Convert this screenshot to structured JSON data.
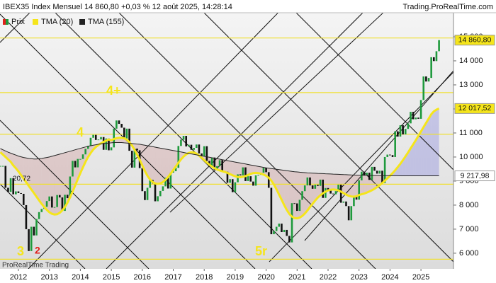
{
  "chart_data": {
    "type": "candlestick",
    "title": "IBEX35 Index Mensuel 14 860,80 +0,03 % 12 août 2025, 14:28:14",
    "source": "Trading.ProRealTime.com",
    "watermark": "ProRealTime Trading",
    "categories": [
      null,
      null,
      null,
      null,
      null,
      null,
      null,
      "2012",
      null,
      null,
      null,
      null,
      null,
      null,
      null,
      null,
      null,
      null,
      null,
      "2013",
      null,
      null,
      null,
      null,
      null,
      null,
      null,
      null,
      null,
      null,
      null,
      "2014",
      null,
      null,
      null,
      null,
      null,
      null,
      null,
      null,
      null,
      null,
      null,
      "2015",
      null,
      null,
      null,
      null,
      null,
      null,
      null,
      null,
      null,
      null,
      null,
      "2016",
      null,
      null,
      null,
      null,
      null,
      null,
      null,
      null,
      null,
      null,
      null,
      "2017",
      null,
      null,
      null,
      null,
      null,
      null,
      null,
      null,
      null,
      null,
      null,
      "2018",
      null,
      null,
      null,
      null,
      null,
      null,
      null,
      null,
      null,
      null,
      null,
      "2019",
      null,
      null,
      null,
      null,
      null,
      null,
      null,
      null,
      null,
      null,
      null,
      "2020",
      null,
      null,
      null,
      null,
      null,
      null,
      null,
      null,
      null,
      null,
      null,
      "2021",
      null,
      null,
      null,
      null,
      null,
      null,
      null,
      null,
      null,
      null,
      null,
      "2022",
      null,
      null,
      null,
      null,
      null,
      null,
      null,
      null,
      null,
      null,
      null,
      "2023",
      null,
      null,
      null,
      null,
      null,
      null,
      null,
      null,
      null,
      null,
      null,
      "2024",
      null,
      null,
      null,
      null,
      null,
      null,
      null,
      null,
      null,
      null,
      null,
      "2025",
      null,
      null,
      null,
      null,
      null,
      null,
      null
    ],
    "series": [
      {
        "name": "Prix",
        "up_color": "#1e9a3c",
        "down_color": "#111111",
        "last_label": "14 860,80",
        "label_color": "#f5e51b",
        "values": [
          9630,
          9630,
          8720,
          8550,
          9120,
          8450,
          8570,
          8500,
          8470,
          8000,
          7000,
          6090,
          7100,
          6740,
          7420,
          7710,
          7840,
          7930,
          8170,
          8360,
          7900,
          7920,
          8420,
          8320,
          7760,
          8430,
          8290,
          9190,
          9840,
          9570,
          9920,
          9920,
          10110,
          10340,
          10460,
          10800,
          10920,
          10710,
          10730,
          10830,
          10300,
          10770,
          10280,
          10400,
          11180,
          11520,
          11380,
          11220,
          10770,
          11180,
          10260,
          9560,
          10350,
          10280,
          9540,
          8580,
          8210,
          8720,
          9050,
          8900,
          8160,
          8370,
          8590,
          8780,
          9140,
          8690,
          9350,
          9410,
          9550,
          10460,
          10720,
          10880,
          10440,
          10510,
          10300,
          10380,
          10520,
          10150,
          10040,
          10450,
          9840,
          9600,
          9980,
          9470,
          9620,
          9870,
          9400,
          9390,
          8930,
          9080,
          8540,
          8950,
          9280,
          9240,
          9570,
          9000,
          9200,
          8980,
          8810,
          9240,
          9260,
          9350,
          9550,
          9370,
          8720,
          6790,
          6920,
          7100,
          7230,
          6880,
          6970,
          6720,
          6450,
          8080,
          8070,
          7760,
          8220,
          8580,
          8820,
          9150,
          8820,
          8680,
          8850,
          8800,
          9060,
          8300,
          8710,
          8610,
          8480,
          8450,
          8580,
          8850,
          8100,
          8150,
          7960,
          7370,
          7960,
          8360,
          8230,
          9030,
          9390,
          9230,
          9350,
          9050,
          9590,
          9430,
          9310,
          9430,
          8920,
          10000,
          10100,
          10080,
          10000,
          11070,
          10850,
          11320,
          10940,
          11170,
          11400,
          11880,
          11570,
          11640,
          11590,
          12370,
          13350,
          13140,
          13290,
          14150,
          13990,
          14400,
          14860.8
        ]
      },
      {
        "name": "TMA (20)",
        "color": "#f5e51b",
        "last_label": "12 017,52",
        "label_color": "#f5e51b",
        "values": [
          10200,
          10100,
          10000,
          9900,
          9800,
          9650,
          9530,
          9400,
          9250,
          9100,
          8950,
          8800,
          8650,
          8500,
          8350,
          8200,
          8050,
          7920,
          7800,
          7700,
          7640,
          7610,
          7620,
          7680,
          7780,
          7920,
          8100,
          8320,
          8560,
          8820,
          9080,
          9330,
          9570,
          9800,
          10000,
          10170,
          10310,
          10420,
          10500,
          10570,
          10630,
          10680,
          10730,
          10700,
          10750,
          10780,
          10800,
          10800,
          10780,
          10720,
          10620,
          10480,
          10300,
          10100,
          9880,
          9650,
          9420,
          9220,
          9070,
          8960,
          8900,
          8880,
          8900,
          8960,
          9050,
          9170,
          9310,
          9460,
          9610,
          9760,
          9900,
          10020,
          10110,
          10170,
          10200,
          10190,
          10140,
          10060,
          9970,
          9870,
          9770,
          9680,
          9600,
          9530,
          9480,
          9440,
          9410,
          9380,
          9340,
          9290,
          9240,
          9200,
          9170,
          9160,
          9180,
          9210,
          9250,
          9300,
          9330,
          9340,
          9330,
          9310,
          9270,
          9220,
          9140,
          9020,
          8860,
          8660,
          8440,
          8220,
          8000,
          7800,
          7630,
          7520,
          7460,
          7450,
          7480,
          7550,
          7650,
          7780,
          7920,
          8060,
          8190,
          8310,
          8410,
          8490,
          8560,
          8610,
          8640,
          8650,
          8640,
          8610,
          8560,
          8500,
          8440,
          8390,
          8360,
          8350,
          8370,
          8420,
          8450,
          8480,
          8520,
          8570,
          8620,
          8680,
          8750,
          8830,
          8920,
          9020,
          9120,
          9220,
          9330,
          9450,
          9580,
          9720,
          9870,
          10030,
          10190,
          10360,
          10530,
          10700,
          10880,
          11060,
          11240,
          11420,
          11600,
          11780,
          11900,
          11970,
          12017.52
        ]
      },
      {
        "name": "TMA (155)",
        "color": "#222222",
        "last_label": "9 217,98",
        "label_color": "#ffffff",
        "values": [
          10350,
          10300,
          10250,
          10200,
          10160,
          10120,
          10080,
          10040,
          10010,
          9980,
          9960,
          9940,
          9930,
          9920,
          9920,
          9930,
          9940,
          9960,
          9980,
          10000,
          10030,
          10060,
          10090,
          10120,
          10150,
          10180,
          10210,
          10240,
          10270,
          10300,
          10330,
          10360,
          10390,
          10420,
          10450,
          10470,
          10490,
          10510,
          10530,
          10550,
          10560,
          10570,
          10580,
          10590,
          10600,
          10600,
          10600,
          10600,
          10590,
          10580,
          10570,
          10560,
          10550,
          10540,
          10530,
          10510,
          10490,
          10470,
          10450,
          10430,
          10410,
          10390,
          10370,
          10350,
          10330,
          10310,
          10290,
          10270,
          10250,
          10230,
          10210,
          10190,
          10170,
          10150,
          10130,
          10110,
          10090,
          10070,
          10050,
          10030,
          10010,
          9990,
          9970,
          9950,
          9930,
          9910,
          9890,
          9870,
          9850,
          9830,
          9810,
          9790,
          9770,
          9750,
          9730,
          9710,
          9690,
          9670,
          9650,
          9630,
          9610,
          9590,
          9570,
          9550,
          9535,
          9520,
          9505,
          9490,
          9475,
          9460,
          9445,
          9430,
          9415,
          9400,
          9390,
          9380,
          9370,
          9360,
          9350,
          9340,
          9335,
          9330,
          9325,
          9320,
          9315,
          9310,
          9305,
          9300,
          9295,
          9290,
          9285,
          9280,
          9275,
          9270,
          9265,
          9260,
          9255,
          9250,
          9248,
          9246,
          9244,
          9242,
          9240,
          9238,
          9236,
          9234,
          9232,
          9230,
          9228,
          9226,
          9225,
          9224,
          9223,
          9222,
          9221,
          9220,
          9220,
          9219,
          9219,
          9219,
          9218,
          9218,
          9218,
          9218,
          9218,
          9218,
          9218,
          9218,
          9218,
          9218,
          9217.98
        ]
      }
    ],
    "ylim": [
      5350,
      16000
    ],
    "yticks": [
      {
        "value": 6000,
        "label": "6 000"
      },
      {
        "value": 7000,
        "label": "7 000"
      },
      {
        "value": 8000,
        "label": "8 000"
      },
      {
        "value": 9000,
        "label": "9 000"
      },
      {
        "value": 10000,
        "label": "10 000"
      },
      {
        "value": 11000,
        "label": "11 000"
      },
      {
        "value": 12000,
        "label": "12 000"
      },
      {
        "value": 13000,
        "label": "13 000"
      },
      {
        "value": 14000,
        "label": "14 000"
      },
      {
        "value": 15000,
        "label": "15 000"
      }
    ],
    "hlines": [
      14950,
      12680,
      10950,
      8870,
      5750
    ],
    "hline_color": "#f0e030",
    "annotations": [
      {
        "text": "4+",
        "color": "#f5e51b"
      },
      {
        "text": "4",
        "color": "#f5e51b"
      },
      {
        "text": "3",
        "color": "#f5e51b"
      },
      {
        "text": "2",
        "color": "#e0201b"
      },
      {
        "text": "5r",
        "color": "#f5e51b"
      },
      {
        "text": "20,72",
        "color": "#111111"
      }
    ]
  }
}
